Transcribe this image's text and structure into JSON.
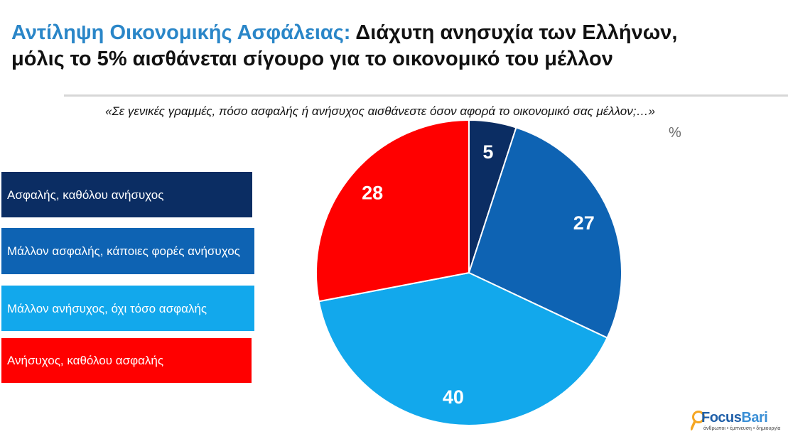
{
  "title": {
    "lead": "Αντίληψη Οικονομικής Ασφάλειας:",
    "rest_line1": " Διάχυτη ανησυχία των Ελλήνων,",
    "line2": "μόλις το 5% αισθάνεται σίγουρο για το οικονομικό του μέλλον"
  },
  "question": "«Σε γενικές γραμμές, πόσο ασφαλής ή ανήσυχος αισθάνεστε όσον αφορά το οικονομικό σας μέλλον;…»",
  "unit": "%",
  "logo": {
    "name_part1": "Focus",
    "name_part2": "Bari",
    "tagline": "άνθρωποι • έμπνευση • δημιουργία"
  },
  "chart_data": {
    "type": "pie",
    "unit": "%",
    "slices": [
      {
        "label": "Ασφαλής, καθόλου ανήσυχος",
        "value": 5,
        "color": "#0b2d63"
      },
      {
        "label": "Μάλλον ασφαλής, κάποιες φορές ανήσυχος",
        "value": 27,
        "color": "#0e63b3"
      },
      {
        "label": "Μάλλον ανήσυχος, όχι τόσο ασφαλής",
        "value": 40,
        "color": "#12a8ec"
      },
      {
        "label": "Ανήσυχος, καθόλου ασφαλής",
        "value": 28,
        "color": "#ff0000"
      }
    ],
    "legend_position": "left"
  }
}
